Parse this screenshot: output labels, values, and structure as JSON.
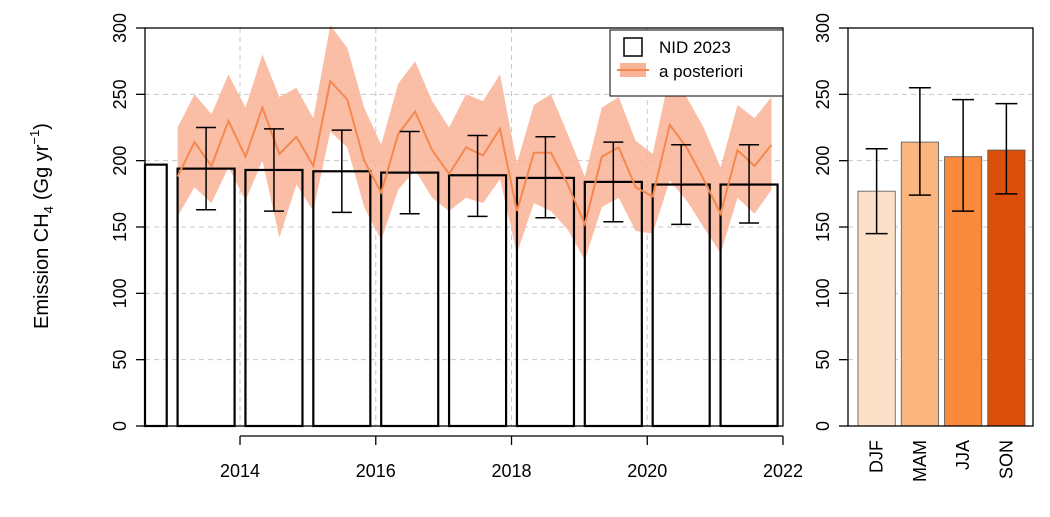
{
  "chart_data": [
    {
      "type": "bar+line",
      "ylabel_main": "Emission CH",
      "ylabel_sub": "4",
      "ylabel_unit_pre": "(Gg yr",
      "ylabel_unit_sup": "−1",
      "ylabel_unit_post": ")",
      "xlim": [
        2012.6,
        2022.0
      ],
      "ylim": [
        0,
        300
      ],
      "xticks": [
        "2014",
        "2016",
        "2018",
        "2020",
        "2022"
      ],
      "yticks": [
        "0",
        "50",
        "100",
        "150",
        "200",
        "250",
        "300"
      ],
      "grid": true,
      "legend_position": "top-right",
      "legend": [
        {
          "label": "NID 2023",
          "kind": "bar-outline"
        },
        {
          "label": "a posteriori",
          "kind": "line-band"
        }
      ],
      "bars_nid_2023": [
        {
          "year": 2012,
          "value": 197,
          "err_low": null,
          "err_high": null
        },
        {
          "year": 2013,
          "value": 194,
          "err_low": 163,
          "err_high": 225
        },
        {
          "year": 2014,
          "value": 193,
          "err_low": 162,
          "err_high": 224
        },
        {
          "year": 2015,
          "value": 192,
          "err_low": 161,
          "err_high": 223
        },
        {
          "year": 2016,
          "value": 191,
          "err_low": 160,
          "err_high": 222
        },
        {
          "year": 2017,
          "value": 189,
          "err_low": 158,
          "err_high": 219
        },
        {
          "year": 2018,
          "value": 187,
          "err_low": 157,
          "err_high": 218
        },
        {
          "year": 2019,
          "value": 184,
          "err_low": 154,
          "err_high": 214
        },
        {
          "year": 2020,
          "value": 182,
          "err_low": 152,
          "err_high": 212
        },
        {
          "year": 2021,
          "value": 182,
          "err_low": 153,
          "err_high": 212
        }
      ],
      "a_posteriori": {
        "x": [
          2013.08,
          2013.33,
          2013.58,
          2013.83,
          2014.08,
          2014.33,
          2014.58,
          2014.83,
          2015.08,
          2015.33,
          2015.58,
          2015.83,
          2016.08,
          2016.33,
          2016.58,
          2016.83,
          2017.08,
          2017.33,
          2017.58,
          2017.83,
          2018.08,
          2018.33,
          2018.58,
          2018.83,
          2019.08,
          2019.33,
          2019.58,
          2019.83,
          2020.08,
          2020.33,
          2020.58,
          2020.83,
          2021.08,
          2021.33,
          2021.58,
          2021.83
        ],
        "y": [
          188,
          214,
          196,
          230,
          203,
          240,
          205,
          218,
          196,
          260,
          246,
          200,
          176,
          220,
          237,
          208,
          190,
          210,
          204,
          224,
          162,
          206,
          206,
          182,
          152,
          203,
          210,
          180,
          173,
          227,
          210,
          186,
          160,
          208,
          196,
          212
        ],
        "lower": [
          158,
          180,
          168,
          195,
          170,
          200,
          142,
          182,
          162,
          222,
          210,
          165,
          140,
          178,
          193,
          172,
          162,
          172,
          168,
          186,
          130,
          168,
          162,
          148,
          125,
          165,
          172,
          147,
          145,
          185,
          170,
          150,
          130,
          172,
          160,
          178
        ],
        "upper": [
          225,
          250,
          235,
          265,
          240,
          280,
          248,
          255,
          232,
          302,
          285,
          240,
          212,
          258,
          275,
          245,
          225,
          250,
          245,
          265,
          198,
          242,
          250,
          220,
          188,
          240,
          248,
          215,
          205,
          265,
          248,
          225,
          195,
          242,
          232,
          248
        ]
      },
      "colors": {
        "line": "#f4884f",
        "band": "#f9b396",
        "bar_fill": "#ffffff",
        "bar_edge": "#000000"
      }
    },
    {
      "type": "bar",
      "categories": [
        "DJF",
        "MAM",
        "JJA",
        "SON"
      ],
      "values": [
        177,
        214,
        203,
        208
      ],
      "err_low": [
        145,
        174,
        162,
        175
      ],
      "err_high": [
        209,
        255,
        246,
        243
      ],
      "ylim": [
        0,
        300
      ],
      "yticks": [
        "0",
        "50",
        "100",
        "150",
        "200",
        "250",
        "300"
      ],
      "grid": true,
      "colors": [
        "#fde0c8",
        "#fbb680",
        "#f98a3c",
        "#dc4f0a"
      ]
    }
  ]
}
